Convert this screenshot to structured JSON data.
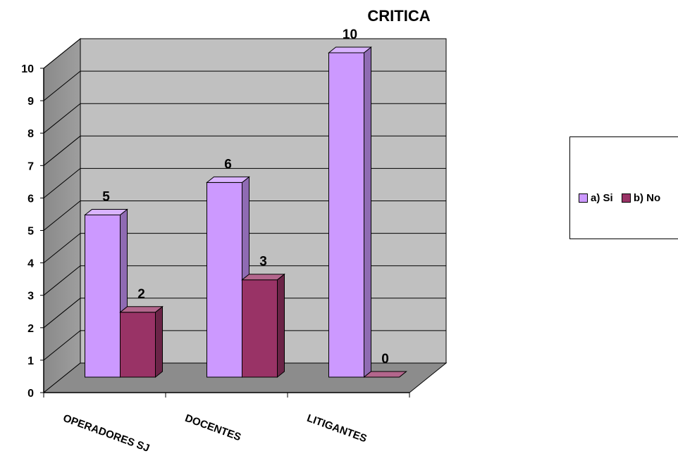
{
  "chart_data": {
    "type": "bar",
    "title": "CRITICA",
    "categories": [
      "OPERADORES SJ",
      "DOCENTES",
      "LITIGANTES"
    ],
    "series": [
      {
        "name": "a) Si",
        "values": [
          5,
          6,
          10
        ],
        "color": "#cc99ff"
      },
      {
        "name": "b) No",
        "values": [
          2,
          3,
          0
        ],
        "color": "#993366"
      }
    ],
    "y_ticks": [
      "0",
      "1",
      "2",
      "3",
      "4",
      "5",
      "6",
      "7",
      "8",
      "9",
      "10"
    ],
    "ylim": [
      0,
      10
    ],
    "grid": true,
    "legend_position": "right",
    "style": "3d-clustered-column",
    "wall_color": "#c0c0c0"
  }
}
